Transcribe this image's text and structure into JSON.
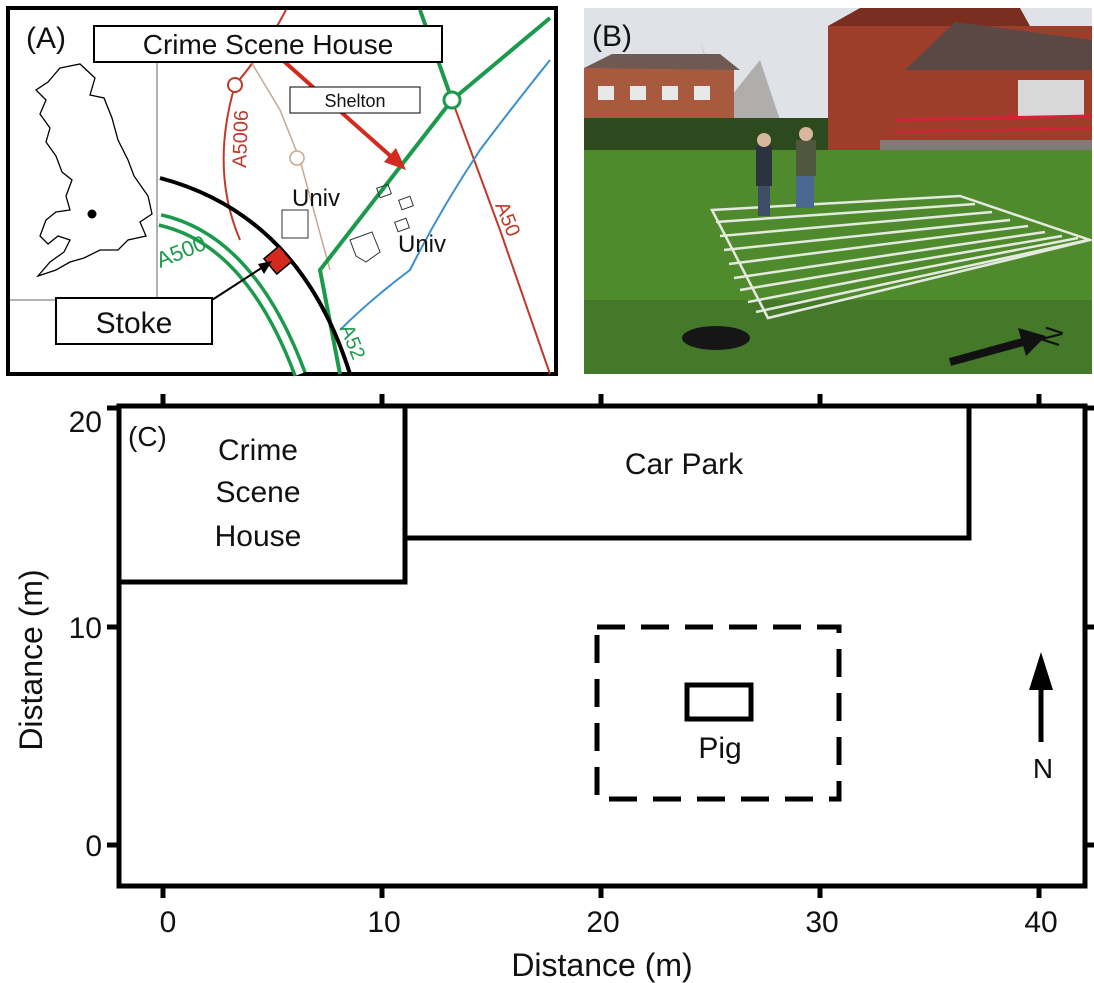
{
  "panel_a": {
    "label": "(A)",
    "title": "Crime Scene House",
    "shelton": "Shelton",
    "stoke": "Stoke",
    "univ_1": "Univ",
    "univ_2": "Univ",
    "roads": {
      "a5006": "A5006",
      "a500": "A500",
      "a50": "A50",
      "a52": "A52"
    }
  },
  "panel_b": {
    "label": "(B)",
    "north": "N"
  },
  "panel_c": {
    "label": "(C)",
    "house_line1": "Crime",
    "house_line2": "Scene",
    "house_line3": "House",
    "car_park": "Car Park",
    "pig": "Pig",
    "north": "N",
    "xlabel": "Distance (m)",
    "ylabel": "Distance (m)",
    "xticks": [
      "0",
      "10",
      "20",
      "30",
      "40"
    ],
    "yticks": [
      "0",
      "10",
      "20"
    ]
  },
  "colors": {
    "road_red": "#c0392b",
    "road_green": "#1a9a4a",
    "river_blue": "#3a8fd0",
    "arrow_red": "#d42a1e",
    "grass": "#4f8a2c",
    "brick": "#9c3e2a"
  }
}
